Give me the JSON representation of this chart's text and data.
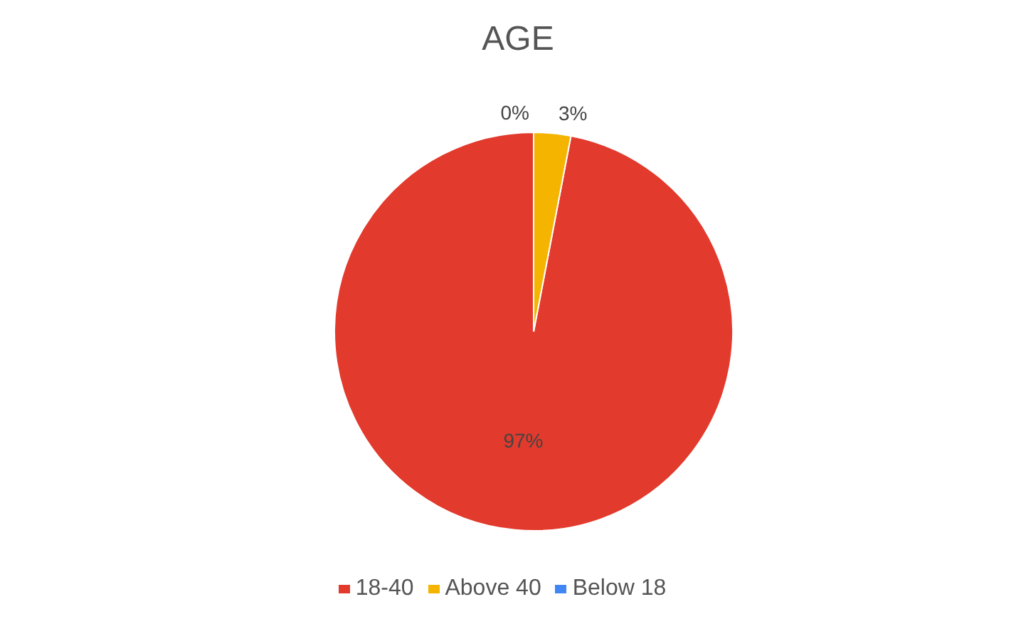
{
  "chart_data": {
    "type": "pie",
    "title": "AGE",
    "categories": [
      "Below 18",
      "18-40",
      "Above 40"
    ],
    "values": [
      0,
      97,
      3
    ],
    "value_labels": [
      "0%",
      "97%",
      "3%"
    ],
    "colors": [
      "#4285f4",
      "#e23a2c",
      "#f4b400"
    ],
    "legend": "bottom"
  }
}
